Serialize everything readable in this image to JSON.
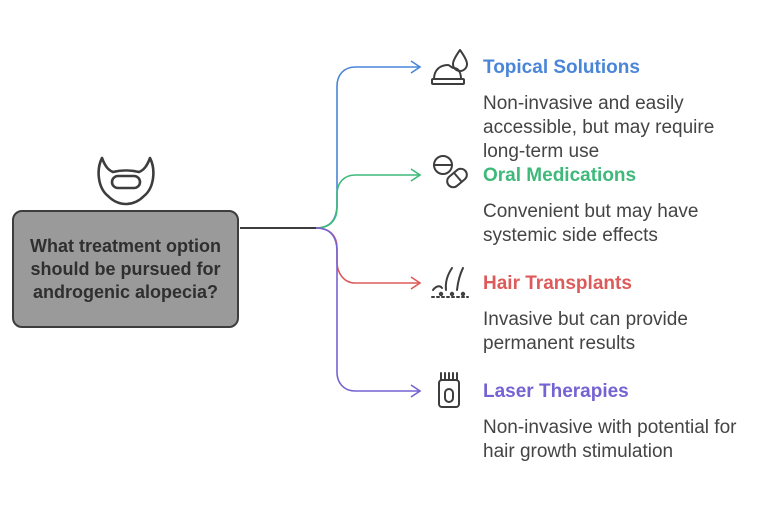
{
  "question": "What treatment option should be pursued for androgenic alopecia?",
  "colors": {
    "box_fill": "#9a9a9a",
    "box_border": "#3d3d3d",
    "connector": "#3d3d3d",
    "icon": "#3d3d3d"
  },
  "options": [
    {
      "title": "Topical Solutions",
      "description": "Non-invasive and easily accessible, but may require long-term use",
      "color": "#4a86d8",
      "icon": "cream-drop-icon"
    },
    {
      "title": "Oral Medications",
      "description": "Convenient but may have systemic side effects",
      "color": "#3fb97a",
      "icon": "pills-icon"
    },
    {
      "title": "Hair Transplants",
      "description": "Invasive but can provide permanent results",
      "color": "#dd5a5a",
      "icon": "hair-follicle-icon"
    },
    {
      "title": "Laser Therapies",
      "description": "Non-invasive with potential for hair growth stimulation",
      "color": "#7463d3",
      "icon": "laser-comb-icon"
    }
  ]
}
